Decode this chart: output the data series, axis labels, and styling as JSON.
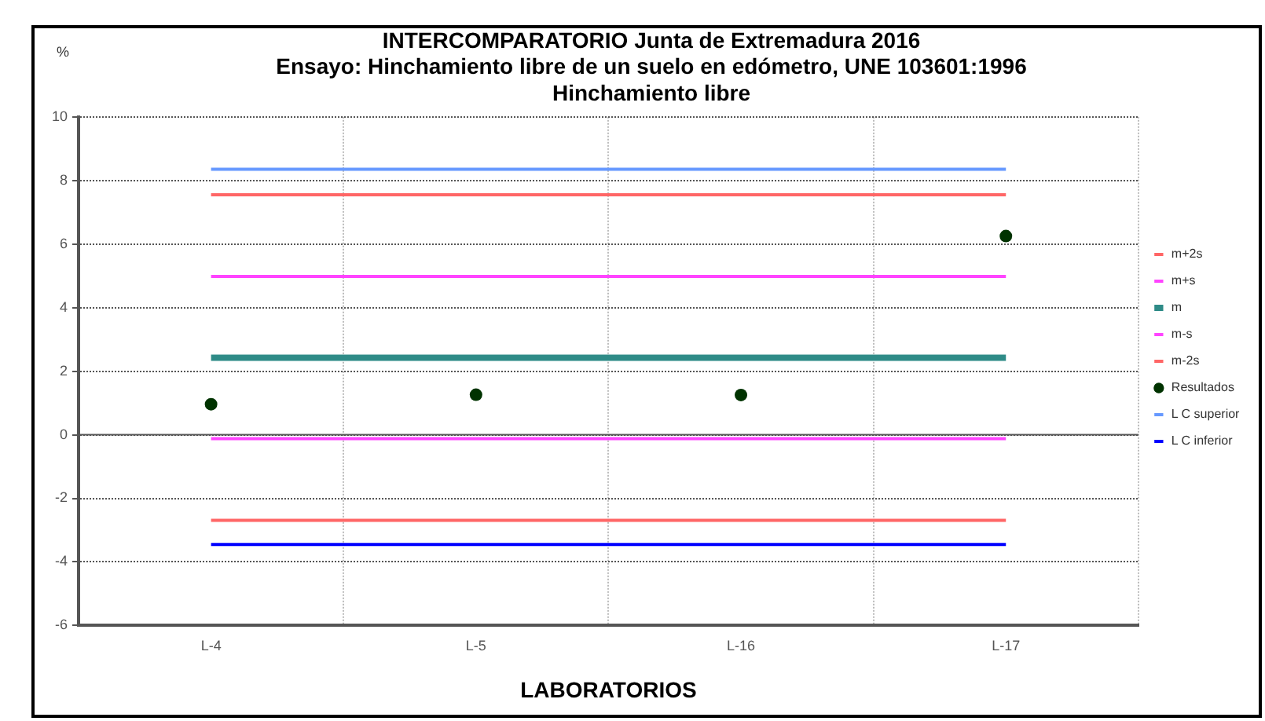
{
  "chart_data": {
    "type": "line",
    "title": "INTERCOMPARATORIO Junta de Extremadura 2016",
    "subtitle": "Ensayo: Hinchamiento libre de un suelo en edómetro, UNE 103601:1996\nHinchamiento libre",
    "xlabel": "LABORATORIOS",
    "ylabel": "%",
    "categories": [
      "L-4",
      "L-5",
      "L-16",
      "L-17"
    ],
    "series": [
      {
        "name": "m+2s",
        "color": "#ff6666",
        "values": [
          7.55,
          7.55,
          7.55,
          7.55
        ]
      },
      {
        "name": "m+s",
        "color": "#ff44ff",
        "values": [
          4.98,
          4.98,
          4.98,
          4.98
        ]
      },
      {
        "name": "m",
        "color": "#2e8b87",
        "values": [
          2.42,
          2.42,
          2.42,
          2.42
        ]
      },
      {
        "name": "m-s",
        "color": "#ff44ff",
        "values": [
          -0.12,
          -0.12,
          -0.12,
          -0.12
        ]
      },
      {
        "name": "m-2s",
        "color": "#ff6666",
        "values": [
          -2.69,
          -2.69,
          -2.69,
          -2.69
        ]
      },
      {
        "name": "Resultados",
        "type": "scatter",
        "marker": "circle",
        "color": "#003300",
        "values": [
          0.96,
          1.26,
          1.25,
          6.25
        ]
      },
      {
        "name": "L C superior",
        "color": "#6699ff",
        "values": [
          8.35,
          8.35,
          8.35,
          8.35
        ]
      },
      {
        "name": "L C inferior",
        "color": "#0000ff",
        "values": [
          -3.45,
          -3.45,
          -3.45,
          -3.45
        ]
      }
    ],
    "ylim": [
      -6,
      10
    ],
    "yticks": [
      -6,
      -4,
      -2,
      0,
      2,
      4,
      6,
      8,
      10
    ],
    "grid": true,
    "legend": "right",
    "marker": "none",
    "line_style": "solid"
  }
}
